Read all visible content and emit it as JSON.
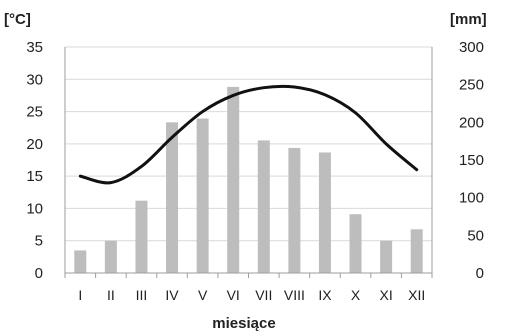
{
  "chart_data": {
    "type": "bar",
    "title": "",
    "xlabel": "miesiące",
    "categories": [
      "I",
      "II",
      "III",
      "IV",
      "V",
      "VI",
      "VII",
      "VIII",
      "IX",
      "X",
      "XI",
      "XII"
    ],
    "left_axis": {
      "unit_label": "[°C]",
      "ylim": [
        0,
        35
      ],
      "ticks": [
        0,
        5,
        10,
        15,
        20,
        25,
        30,
        35
      ]
    },
    "right_axis": {
      "unit_label": "[mm]",
      "ylim": [
        0,
        300
      ],
      "ticks": [
        0,
        50,
        100,
        150,
        200,
        250,
        300
      ]
    },
    "series": [
      {
        "type": "bar",
        "axis": "right",
        "color": "#bdbdbd",
        "values": [
          30,
          43,
          96,
          200,
          205,
          247,
          176,
          166,
          160,
          78,
          43,
          58
        ]
      },
      {
        "type": "line",
        "axis": "left",
        "color": "#111111",
        "values": [
          15.0,
          14.0,
          16.5,
          21.0,
          25.0,
          27.5,
          28.7,
          28.8,
          27.6,
          24.8,
          20.0,
          16.0
        ]
      }
    ],
    "grid": "horizontal",
    "legend": "none"
  }
}
